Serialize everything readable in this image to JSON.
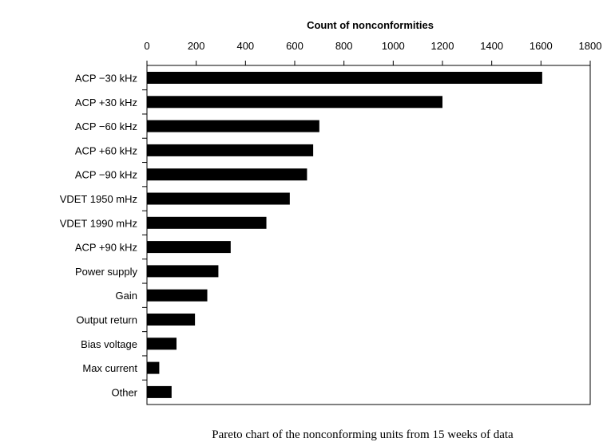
{
  "chart_data": {
    "type": "bar",
    "orientation": "horizontal",
    "title": "Count of nonconformities",
    "caption": "Pareto chart of the nonconforming units from 15 weeks of data",
    "xlim": [
      0,
      1800
    ],
    "xticks": [
      0,
      200,
      400,
      600,
      800,
      1000,
      1200,
      1400,
      1600,
      1800
    ],
    "categories": [
      "ACP −30 kHz",
      "ACP +30 kHz",
      "ACP −60 kHz",
      "ACP +60 kHz",
      "ACP −90 kHz",
      "VDET 1950 mHz",
      "VDET 1990 mHz",
      "ACP +90 kHz",
      "Power supply",
      "Gain",
      "Output return",
      "Bias voltage",
      "Max current",
      "Other"
    ],
    "values": [
      1605,
      1200,
      700,
      675,
      650,
      580,
      485,
      340,
      290,
      245,
      195,
      120,
      50,
      100
    ],
    "bar_color": "#000000",
    "grid": false,
    "axis_position": "top"
  }
}
